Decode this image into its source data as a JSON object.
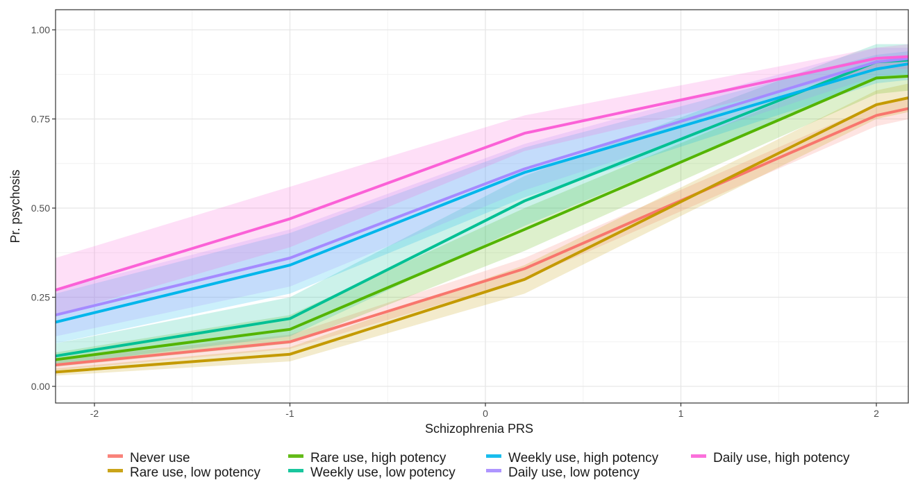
{
  "chart_data": {
    "type": "line",
    "title": "",
    "xlabel": "Schizophrenia PRS",
    "ylabel": "Pr. psychosis",
    "xlim": [
      -2.2,
      2.17
    ],
    "ylim": [
      -0.045,
      1.055
    ],
    "x_ticks": [
      -2,
      -1,
      0,
      1,
      2
    ],
    "x_tick_labels": [
      "-2",
      "-1",
      "0",
      "1",
      "2"
    ],
    "y_ticks": [
      0.0,
      0.25,
      0.5,
      0.75,
      1.0
    ],
    "y_tick_labels": [
      "0.00",
      "0.25",
      "0.50",
      "0.75",
      "1.00"
    ],
    "grid": true,
    "legend_position": "bottom",
    "x": [
      -2.2,
      -1,
      0.2,
      2,
      2.17
    ],
    "series": [
      {
        "name": "Never use",
        "color": "#F8766D",
        "values": [
          0.06,
          0.125,
          0.33,
          0.76,
          0.78
        ],
        "lower": [
          0.045,
          0.105,
          0.3,
          0.73,
          0.75
        ],
        "upper": [
          0.075,
          0.145,
          0.36,
          0.79,
          0.81
        ]
      },
      {
        "name": "Rare use, low potency",
        "color": "#C49A00",
        "values": [
          0.04,
          0.09,
          0.3,
          0.79,
          0.81
        ],
        "lower": [
          0.03,
          0.07,
          0.26,
          0.75,
          0.77
        ],
        "upper": [
          0.05,
          0.11,
          0.34,
          0.83,
          0.85
        ]
      },
      {
        "name": "Rare use, high potency",
        "color": "#53B400",
        "values": [
          0.075,
          0.16,
          0.44,
          0.865,
          0.87
        ],
        "lower": [
          0.055,
          0.12,
          0.38,
          0.82,
          0.83
        ],
        "upper": [
          0.095,
          0.2,
          0.5,
          0.91,
          0.91
        ]
      },
      {
        "name": "Weekly use, low potency",
        "color": "#00C094",
        "values": [
          0.085,
          0.19,
          0.52,
          0.91,
          0.915
        ],
        "lower": [
          0.06,
          0.14,
          0.45,
          0.86,
          0.87
        ],
        "upper": [
          0.12,
          0.25,
          0.59,
          0.96,
          0.96
        ]
      },
      {
        "name": "Weekly use, high potency",
        "color": "#00B6EB",
        "values": [
          0.18,
          0.34,
          0.6,
          0.89,
          0.905
        ],
        "lower": [
          0.12,
          0.26,
          0.53,
          0.85,
          0.86
        ],
        "upper": [
          0.26,
          0.43,
          0.67,
          0.93,
          0.94
        ]
      },
      {
        "name": "Daily use, low potency",
        "color": "#A58AFF",
        "values": [
          0.2,
          0.36,
          0.61,
          0.91,
          0.92
        ],
        "lower": [
          0.14,
          0.28,
          0.55,
          0.87,
          0.88
        ],
        "upper": [
          0.27,
          0.44,
          0.68,
          0.95,
          0.95
        ]
      },
      {
        "name": "Daily use, high potency",
        "color": "#FB61D7",
        "values": [
          0.27,
          0.47,
          0.71,
          0.92,
          0.925
        ],
        "lower": [
          0.2,
          0.39,
          0.66,
          0.89,
          0.89
        ],
        "upper": [
          0.36,
          0.56,
          0.76,
          0.95,
          0.96
        ]
      }
    ]
  }
}
